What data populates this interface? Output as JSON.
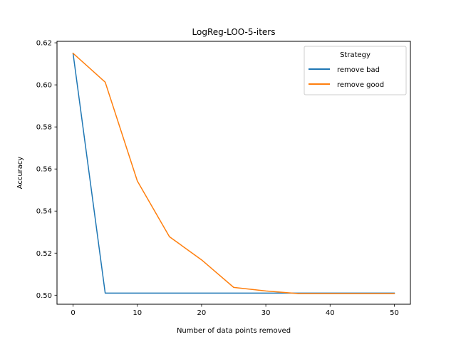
{
  "chart_data": {
    "type": "line",
    "title": "LogReg-LOO-5-iters",
    "xlabel": "Number of data points removed",
    "ylabel": "Accuracy",
    "x": [
      0,
      5,
      10,
      15,
      20,
      25,
      30,
      35,
      40,
      45,
      50
    ],
    "xlim": [
      -2.5,
      52.5
    ],
    "ylim": [
      0.4957,
      0.6207
    ],
    "xticks": [
      0,
      10,
      20,
      30,
      40,
      50
    ],
    "xtick_labels": [
      "0",
      "10",
      "20",
      "30",
      "40",
      "50"
    ],
    "yticks": [
      0.5,
      0.52,
      0.54,
      0.56,
      0.58,
      0.6,
      0.62
    ],
    "ytick_labels": [
      "0.50",
      "0.52",
      "0.54",
      "0.56",
      "0.58",
      "0.60",
      "0.62"
    ],
    "grid": false,
    "legend": {
      "title": "Strategy",
      "placement": "top-right"
    },
    "series": [
      {
        "name": "remove bad",
        "color": "#1f77b4",
        "values": [
          0.615,
          0.501,
          0.501,
          0.501,
          0.501,
          0.501,
          0.501,
          0.501,
          0.501,
          0.501,
          0.501
        ]
      },
      {
        "name": "remove good",
        "color": "#ff7f0e",
        "values": [
          0.615,
          0.6013,
          0.5543,
          0.5278,
          0.5168,
          0.5037,
          0.502,
          0.5008,
          0.5008,
          0.5008,
          0.5008
        ]
      }
    ]
  }
}
